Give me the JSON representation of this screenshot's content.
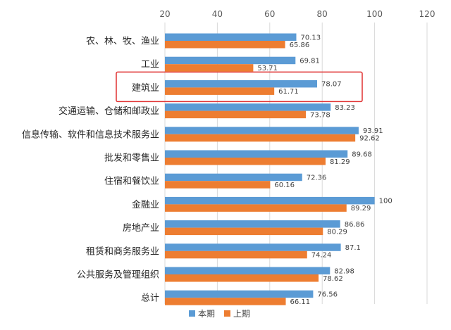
{
  "chart_data": {
    "type": "bar",
    "orientation": "horizontal",
    "categories": [
      "农、林、牧、渔业",
      "工业",
      "建筑业",
      "交通运输、仓储和邮政业",
      "信息传输、软件和信息技术服务业",
      "批发和零售业",
      "住宿和餐饮业",
      "金融业",
      "房地产业",
      "租赁和商务服务业",
      "公共服务及管理组织",
      "总计"
    ],
    "series": [
      {
        "name": "本期",
        "color": "#5b9bd5",
        "values": [
          70.13,
          69.81,
          78.07,
          83.23,
          93.91,
          89.68,
          72.36,
          100,
          86.86,
          87.1,
          82.98,
          76.56
        ],
        "labels": [
          "70.13",
          "69.81",
          "78.07",
          "83.23",
          "93.91",
          "89.68",
          "72.36",
          "100",
          "86.86",
          "87.1",
          "82.98",
          "76.56"
        ]
      },
      {
        "name": "上期",
        "color": "#ed7d31",
        "values": [
          65.86,
          53.71,
          61.71,
          73.78,
          92.62,
          81.29,
          60.16,
          89.29,
          80.29,
          74.24,
          78.62,
          66.11
        ],
        "labels": [
          "65.86",
          "53.71",
          "61.71",
          "73.78",
          "92.62",
          "81.29",
          "60.16",
          "89.29",
          "80.29",
          "74.24",
          "78.62",
          "66.11"
        ]
      }
    ],
    "xlim": [
      20,
      120
    ],
    "xticks": [
      "20",
      "40",
      "60",
      "80",
      "100",
      "120"
    ],
    "grid": true,
    "legend_position": "bottom",
    "highlight": {
      "category": "建筑业",
      "color": "#e03030"
    }
  }
}
